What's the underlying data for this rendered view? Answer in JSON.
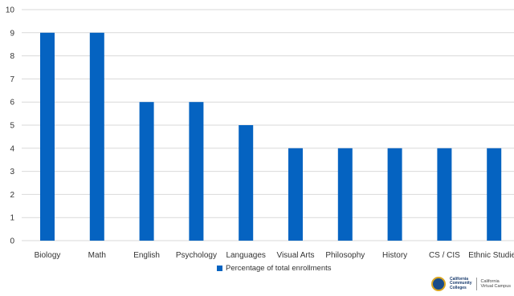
{
  "chart_data": {
    "type": "bar",
    "categories": [
      "Biology",
      "Math",
      "English",
      "Psychology",
      "Languages",
      "Visual Arts",
      "Philosophy",
      "History",
      "CS / CIS",
      "Ethnic Studies"
    ],
    "series": [
      {
        "name": "Percentage of total enrollments",
        "values": [
          9,
          9,
          6,
          6,
          5,
          4,
          4,
          4,
          4,
          4
        ]
      }
    ],
    "ylim": [
      0,
      10
    ],
    "yticks": [
      0,
      1,
      2,
      3,
      4,
      5,
      6,
      7,
      8,
      9,
      10
    ],
    "grid": true,
    "legend_position": "bottom"
  },
  "colors": {
    "bar": "#0563c1",
    "grid": "#d9d9d9"
  },
  "branding": {
    "logo_line1": "California",
    "logo_line2": "Community",
    "logo_line3": "Colleges",
    "cvc_line1": "California",
    "cvc_line2": "Virtual Campus"
  }
}
